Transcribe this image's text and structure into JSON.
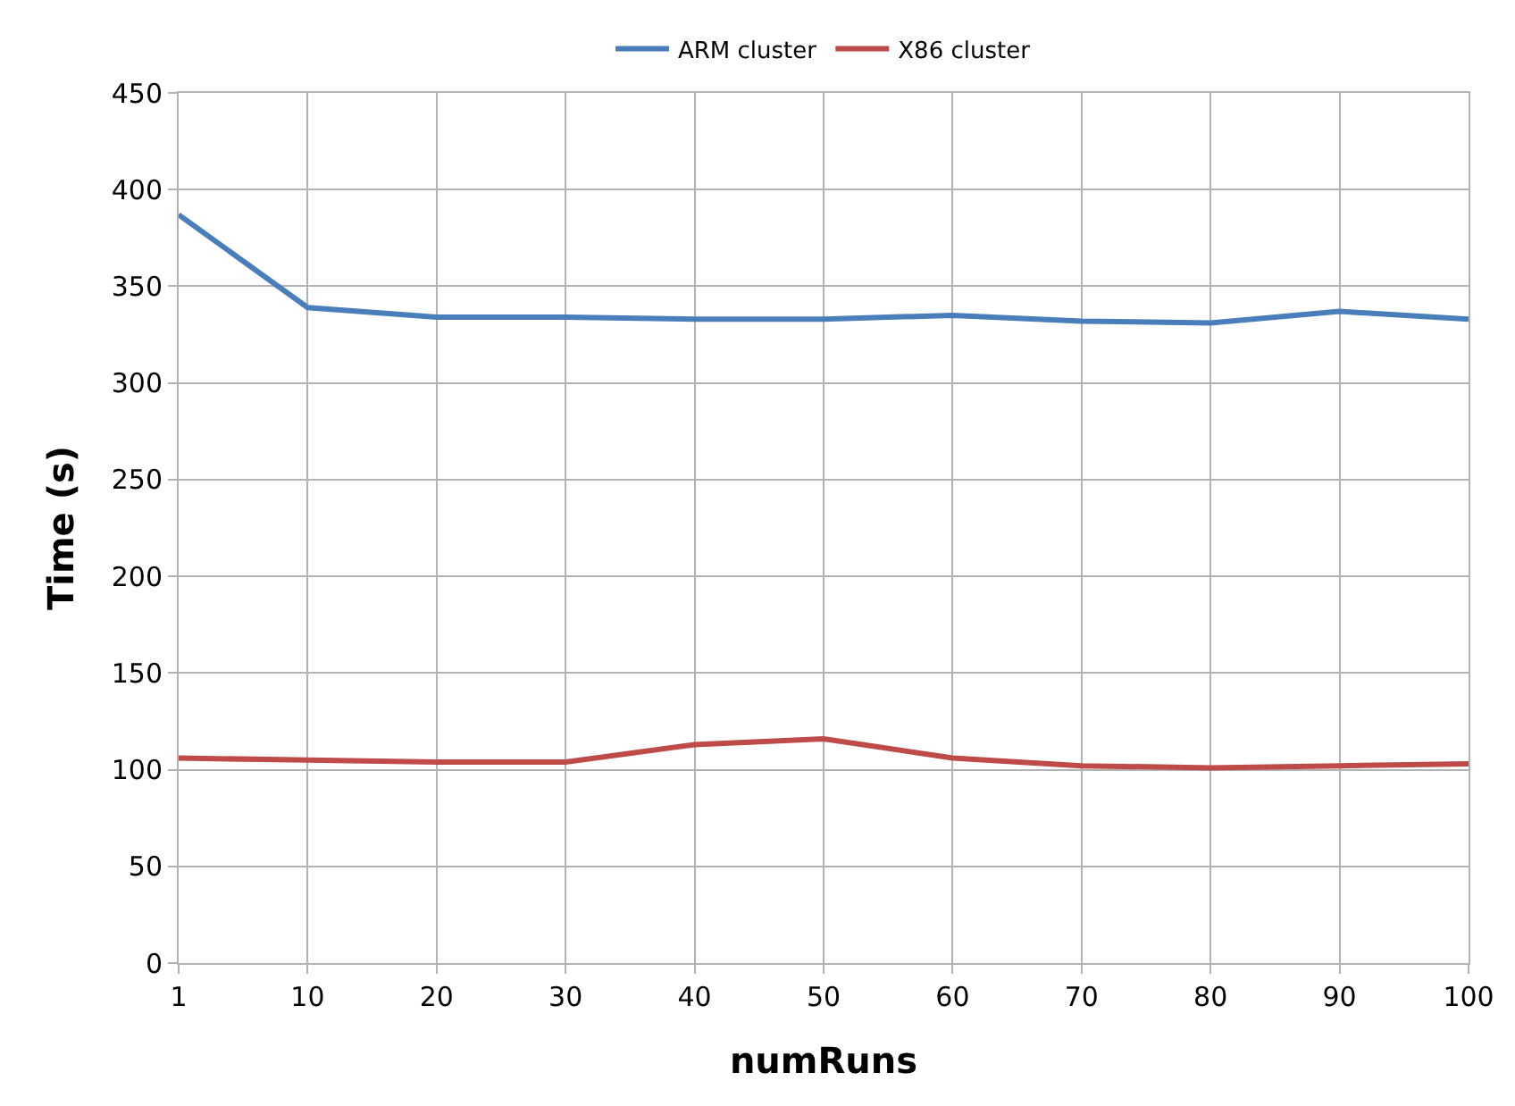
{
  "chart_data": {
    "type": "line",
    "xlabel": "numRuns",
    "ylabel": "Time (s)",
    "categories": [
      "1",
      "10",
      "20",
      "30",
      "40",
      "50",
      "60",
      "70",
      "80",
      "90",
      "100"
    ],
    "series": [
      {
        "name": "ARM cluster",
        "color": "#4a7ebb",
        "values": [
          387,
          339,
          334,
          334,
          333,
          333,
          335,
          332,
          331,
          337,
          333
        ]
      },
      {
        "name": "X86 cluster",
        "color": "#be4b48",
        "values": [
          106,
          105,
          104,
          104,
          113,
          116,
          106,
          102,
          101,
          102,
          103
        ]
      }
    ],
    "ylim": [
      0,
      450
    ],
    "yticks": [
      0,
      50,
      100,
      150,
      200,
      250,
      300,
      350,
      400,
      450
    ],
    "grid": true,
    "legend": "top",
    "marker": "none",
    "line_style": "solid"
  }
}
